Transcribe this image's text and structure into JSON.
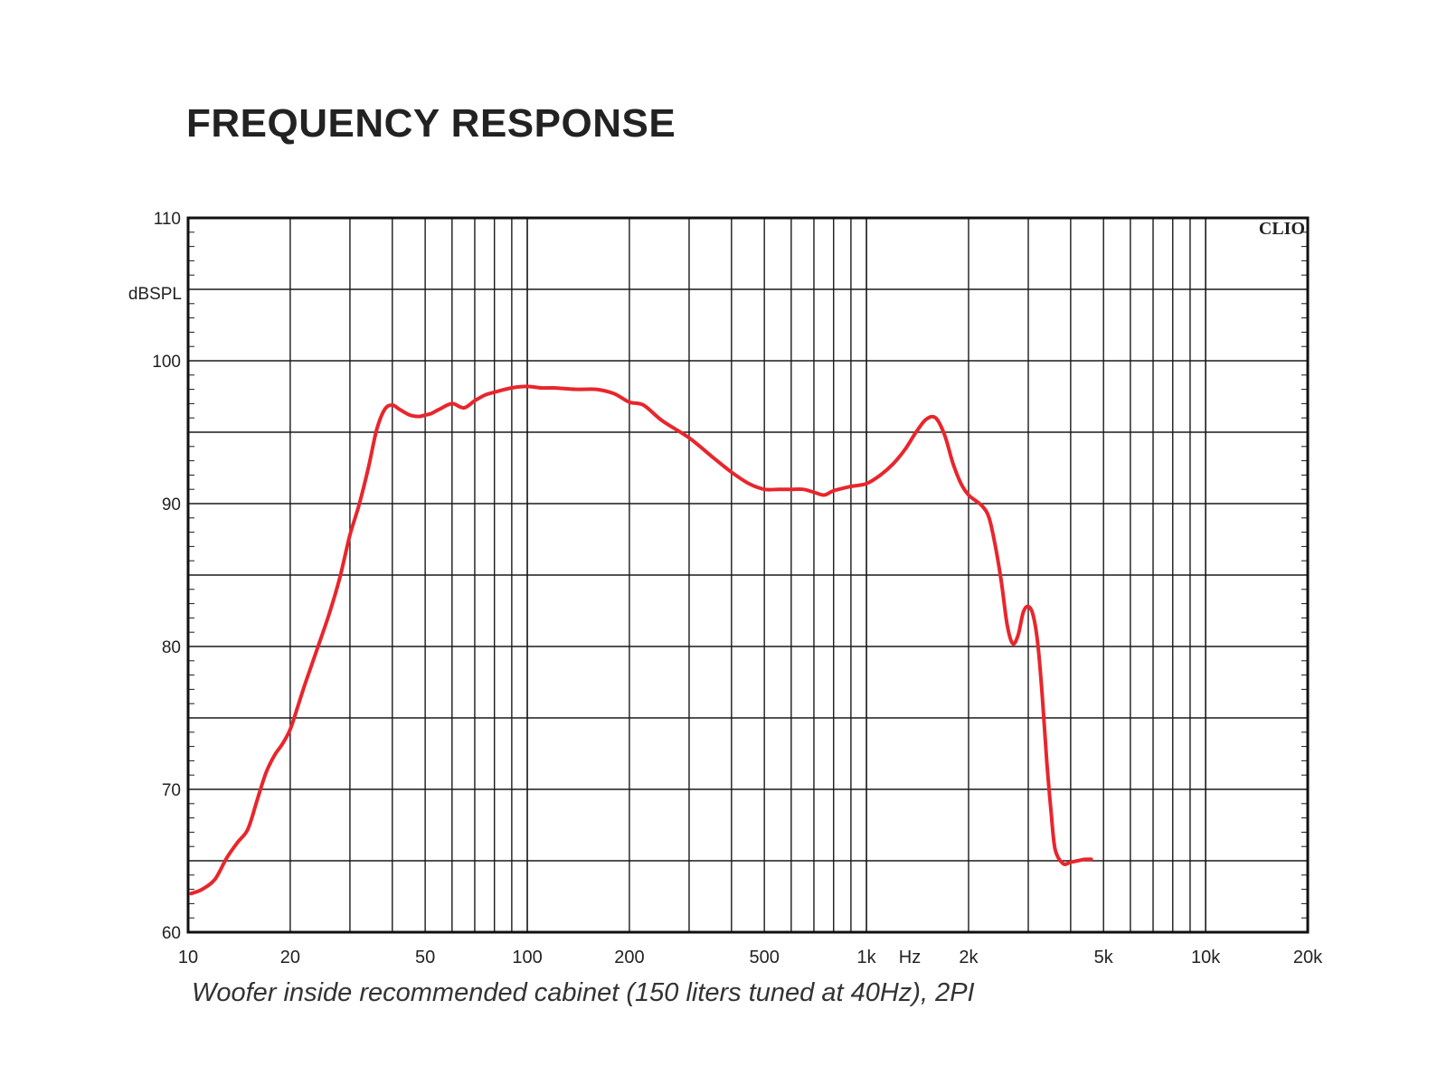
{
  "page": {
    "title": "FREQUENCY RESPONSE",
    "caption": "Woofer inside recommended cabinet (150 liters tuned at 40Hz), 2PI"
  },
  "chart_data": {
    "type": "line",
    "title": "FREQUENCY RESPONSE",
    "ylabel": "dBSPL",
    "xunit": "Hz",
    "watermark": "CLIO",
    "xscale": "log",
    "xlim": [
      10,
      20000
    ],
    "ylim": [
      60,
      110
    ],
    "grid": true,
    "x_ticks": [
      {
        "value": 10,
        "label": "10"
      },
      {
        "value": 20,
        "label": "20"
      },
      {
        "value": 50,
        "label": "50"
      },
      {
        "value": 100,
        "label": "100"
      },
      {
        "value": 200,
        "label": "200"
      },
      {
        "value": 500,
        "label": "500"
      },
      {
        "value": 1000,
        "label": "1k"
      },
      {
        "value": 2000,
        "label": "2k"
      },
      {
        "value": 5000,
        "label": "5k"
      },
      {
        "value": 10000,
        "label": "10k"
      },
      {
        "value": 20000,
        "label": "20k"
      }
    ],
    "y_ticks": [
      {
        "value": 60,
        "label": "60"
      },
      {
        "value": 70,
        "label": "70"
      },
      {
        "value": 80,
        "label": "80"
      },
      {
        "value": 90,
        "label": "90"
      },
      {
        "value": 100,
        "label": "100"
      },
      {
        "value": 110,
        "label": "110"
      }
    ],
    "line_color": "#e8262c",
    "series": [
      {
        "x": [
          10.2,
          11,
          12,
          13,
          14,
          15,
          16,
          17,
          18,
          19,
          20,
          21,
          22,
          24,
          26,
          28,
          30,
          32,
          34,
          36,
          38,
          40,
          42,
          45,
          48,
          50,
          52,
          55,
          60,
          65,
          70,
          75,
          80,
          90,
          100,
          110,
          120,
          140,
          160,
          180,
          200,
          220,
          250,
          300,
          350,
          400,
          450,
          500,
          550,
          600,
          650,
          700,
          750,
          800,
          900,
          1000,
          1100,
          1200,
          1300,
          1400,
          1500,
          1600,
          1700,
          1800,
          1900,
          2000,
          2100,
          2200,
          2300,
          2400,
          2500,
          2600,
          2700,
          2800,
          2900,
          3000,
          3100,
          3200,
          3300,
          3400,
          3500,
          3600,
          3800,
          4000,
          4200,
          4400,
          4600
        ],
        "y": [
          62.7,
          63.0,
          63.7,
          65.2,
          66.3,
          67.2,
          69.3,
          71.2,
          72.4,
          73.2,
          74.2,
          75.7,
          77.2,
          79.8,
          82.2,
          84.8,
          87.8,
          90.0,
          92.5,
          95.2,
          96.6,
          96.9,
          96.6,
          96.2,
          96.1,
          96.2,
          96.3,
          96.6,
          97.0,
          96.7,
          97.2,
          97.6,
          97.8,
          98.1,
          98.2,
          98.1,
          98.1,
          98.0,
          98.0,
          97.7,
          97.1,
          96.9,
          95.8,
          94.6,
          93.3,
          92.2,
          91.4,
          91.0,
          91.0,
          91.0,
          91.0,
          90.8,
          90.6,
          90.9,
          91.2,
          91.4,
          92.0,
          92.8,
          93.8,
          95.0,
          95.9,
          96.0,
          94.8,
          92.8,
          91.4,
          90.6,
          90.2,
          89.8,
          89.0,
          87.0,
          84.5,
          81.5,
          80.2,
          80.8,
          82.4,
          82.8,
          82.2,
          80.2,
          76.5,
          72.0,
          68.5,
          65.8,
          64.8,
          64.9,
          65.0,
          65.1,
          65.1
        ]
      }
    ]
  }
}
